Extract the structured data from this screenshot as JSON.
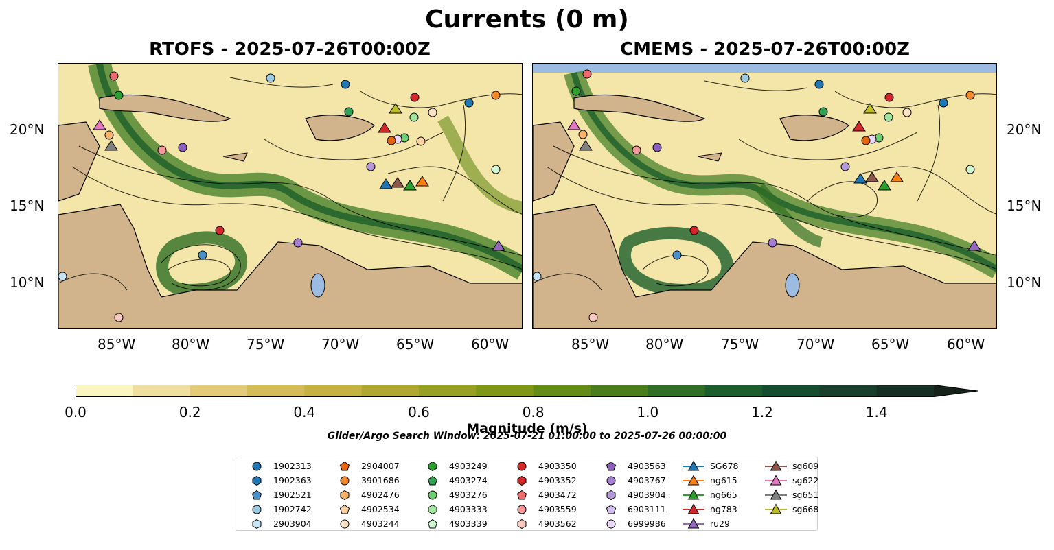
{
  "figure": {
    "suptitle": "Currents (0 m)",
    "panels": [
      {
        "title": "RTOFS - 2025-07-26T00:00Z"
      },
      {
        "title": "CMEMS - 2025-07-26T00:00Z"
      }
    ],
    "x_ticks": [
      "85°W",
      "80°W",
      "75°W",
      "70°W",
      "65°W",
      "60°W"
    ],
    "y_ticks": [
      "20°N",
      "15°N",
      "10°N"
    ],
    "colorbar": {
      "label": "Magnitude (m/s)",
      "ticks": [
        "0.0",
        "0.2",
        "0.4",
        "0.6",
        "0.8",
        "1.0",
        "1.2",
        "1.4"
      ],
      "range": [
        0,
        1.5
      ],
      "extend": "max",
      "colors": [
        "#fbf5c0",
        "#efe0a0",
        "#e2cc79",
        "#d4bc58",
        "#c4b243",
        "#b0a733",
        "#98a024",
        "#7f9717",
        "#648b16",
        "#4a7d1c",
        "#2f6e24",
        "#1b5e2b",
        "#154d30",
        "#173f2c",
        "#172f22",
        "#15221a"
      ]
    },
    "search_window": "Glider/Argo Search Window: 2025-07-21 01:00:00 to 2025-07-26 00:00:00",
    "colors": {
      "land": "#d2b48c",
      "water": "#9bbbe0"
    }
  },
  "legend": [
    {
      "label": "1902313",
      "marker": "circle",
      "color": "#1f77b4"
    },
    {
      "label": "1902363",
      "marker": "hexagon",
      "color": "#1f77b4"
    },
    {
      "label": "1902521",
      "marker": "pentagon",
      "color": "#4a90c8"
    },
    {
      "label": "1902742",
      "marker": "circle",
      "color": "#9ecae1"
    },
    {
      "label": "2903904",
      "marker": "hexagon",
      "color": "#c6e4f5"
    },
    {
      "label": "2904007",
      "marker": "pentagon",
      "color": "#e6660f"
    },
    {
      "label": "3901686",
      "marker": "circle",
      "color": "#f4892c"
    },
    {
      "label": "4902476",
      "marker": "hexagon",
      "color": "#f8b36b"
    },
    {
      "label": "4902534",
      "marker": "pentagon",
      "color": "#fdd0a2"
    },
    {
      "label": "4903244",
      "marker": "circle",
      "color": "#fde3c8"
    },
    {
      "label": "4903249",
      "marker": "hexagon",
      "color": "#2ca02c"
    },
    {
      "label": "4903274",
      "marker": "pentagon",
      "color": "#31a354"
    },
    {
      "label": "4903276",
      "marker": "circle",
      "color": "#6fcf6f"
    },
    {
      "label": "4903333",
      "marker": "hexagon",
      "color": "#a1e6a1"
    },
    {
      "label": "4903339",
      "marker": "pentagon",
      "color": "#d0f7d0"
    },
    {
      "label": "4903350",
      "marker": "circle",
      "color": "#d62728"
    },
    {
      "label": "4903352",
      "marker": "hexagon",
      "color": "#d62728"
    },
    {
      "label": "4903472",
      "marker": "pentagon",
      "color": "#ee6b6e"
    },
    {
      "label": "4903559",
      "marker": "circle",
      "color": "#f49a9a"
    },
    {
      "label": "4903562",
      "marker": "hexagon",
      "color": "#fcc9c0"
    },
    {
      "label": "4903563",
      "marker": "pentagon",
      "color": "#8c5fbf"
    },
    {
      "label": "4903767",
      "marker": "circle",
      "color": "#a57dd1"
    },
    {
      "label": "4903904",
      "marker": "hexagon",
      "color": "#b497d9"
    },
    {
      "label": "6903111",
      "marker": "pentagon",
      "color": "#d3c0ee"
    },
    {
      "label": "6999986",
      "marker": "circle",
      "color": "#ead9fb"
    },
    {
      "label": "SG678",
      "marker": "triangle",
      "color": "#1f77b4"
    },
    {
      "label": "ng615",
      "marker": "triangle",
      "color": "#ff7f0e"
    },
    {
      "label": "ng665",
      "marker": "triangle",
      "color": "#2ca02c"
    },
    {
      "label": "ng783",
      "marker": "triangle",
      "color": "#d62728"
    },
    {
      "label": "ru29",
      "marker": "triangle",
      "color": "#9467bd"
    },
    {
      "label": "sg609",
      "marker": "triangle",
      "color": "#8c564b"
    },
    {
      "label": "sg622",
      "marker": "triangle",
      "color": "#e377c2"
    },
    {
      "label": "sg651",
      "marker": "triangle",
      "color": "#7f7f7f"
    },
    {
      "label": "sg668",
      "marker": "triangle",
      "color": "#bcbd22"
    }
  ]
}
